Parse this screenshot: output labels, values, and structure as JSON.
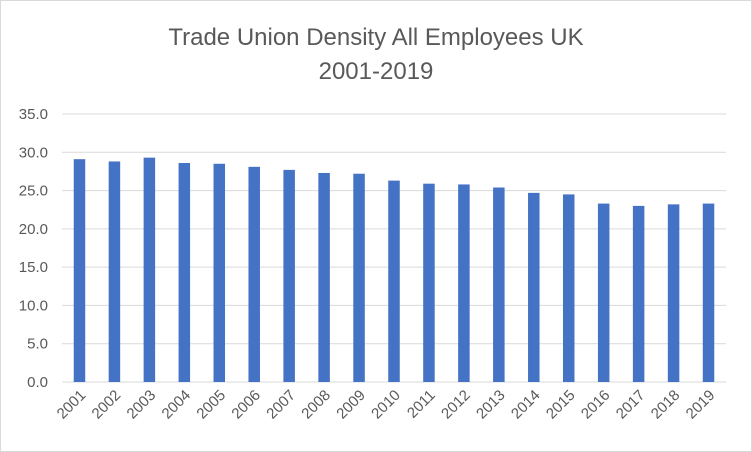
{
  "chart_data": {
    "type": "bar",
    "title": "Trade Union Density All Employees UK",
    "subtitle": "2001-2019",
    "xlabel": "",
    "ylabel": "",
    "categories": [
      "2001",
      "2002",
      "2003",
      "2004",
      "2005",
      "2006",
      "2007",
      "2008",
      "2009",
      "2010",
      "2011",
      "2012",
      "2013",
      "2014",
      "2015",
      "2016",
      "2017",
      "2018",
      "2019"
    ],
    "values": [
      29.1,
      28.8,
      29.3,
      28.6,
      28.5,
      28.1,
      27.7,
      27.3,
      27.2,
      26.3,
      25.9,
      25.8,
      25.4,
      24.7,
      24.5,
      23.3,
      23.0,
      23.2,
      23.3
    ],
    "ylim": [
      0,
      35
    ],
    "yticks": [
      "0.0",
      "5.0",
      "10.0",
      "15.0",
      "20.0",
      "25.0",
      "30.0",
      "35.0"
    ],
    "grid": true,
    "legend": "none",
    "bar_color": "#4472c4",
    "grid_color": "#d9d9d9"
  }
}
